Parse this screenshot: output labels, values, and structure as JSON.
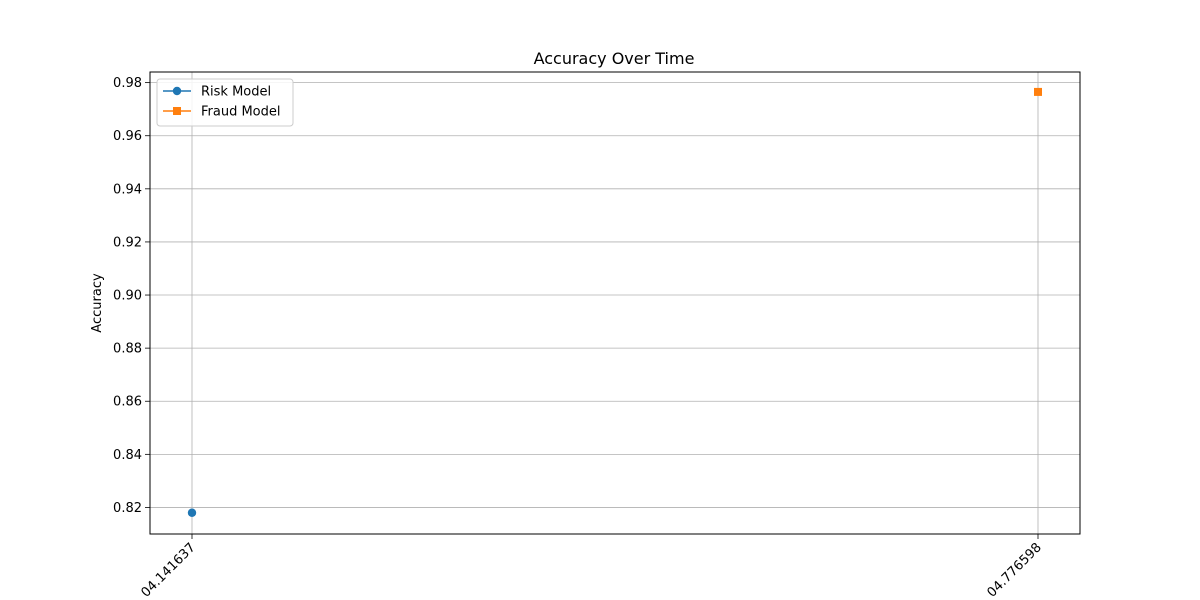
{
  "chart_data": {
    "type": "line",
    "title": "Accuracy Over Time",
    "xlabel": "",
    "ylabel": "Accuracy",
    "x_ticks": [
      "04.141637",
      "04.776598"
    ],
    "ylim": [
      0.81,
      0.984
    ],
    "y_ticks": [
      0.82,
      0.84,
      0.86,
      0.88,
      0.9,
      0.92,
      0.94,
      0.96,
      0.98
    ],
    "y_tick_labels": [
      "0.82",
      "0.84",
      "0.86",
      "0.88",
      "0.90",
      "0.92",
      "0.94",
      "0.96",
      "0.98"
    ],
    "grid": true,
    "legend_position": "top-left",
    "series": [
      {
        "name": "Risk Model",
        "color": "#1f77b4",
        "marker": "circle",
        "points": [
          {
            "x_index": 0,
            "y": 0.818
          }
        ]
      },
      {
        "name": "Fraud Model",
        "color": "#ff7f0e",
        "marker": "square",
        "points": [
          {
            "x_index": 1,
            "y": 0.9765
          }
        ]
      }
    ]
  }
}
